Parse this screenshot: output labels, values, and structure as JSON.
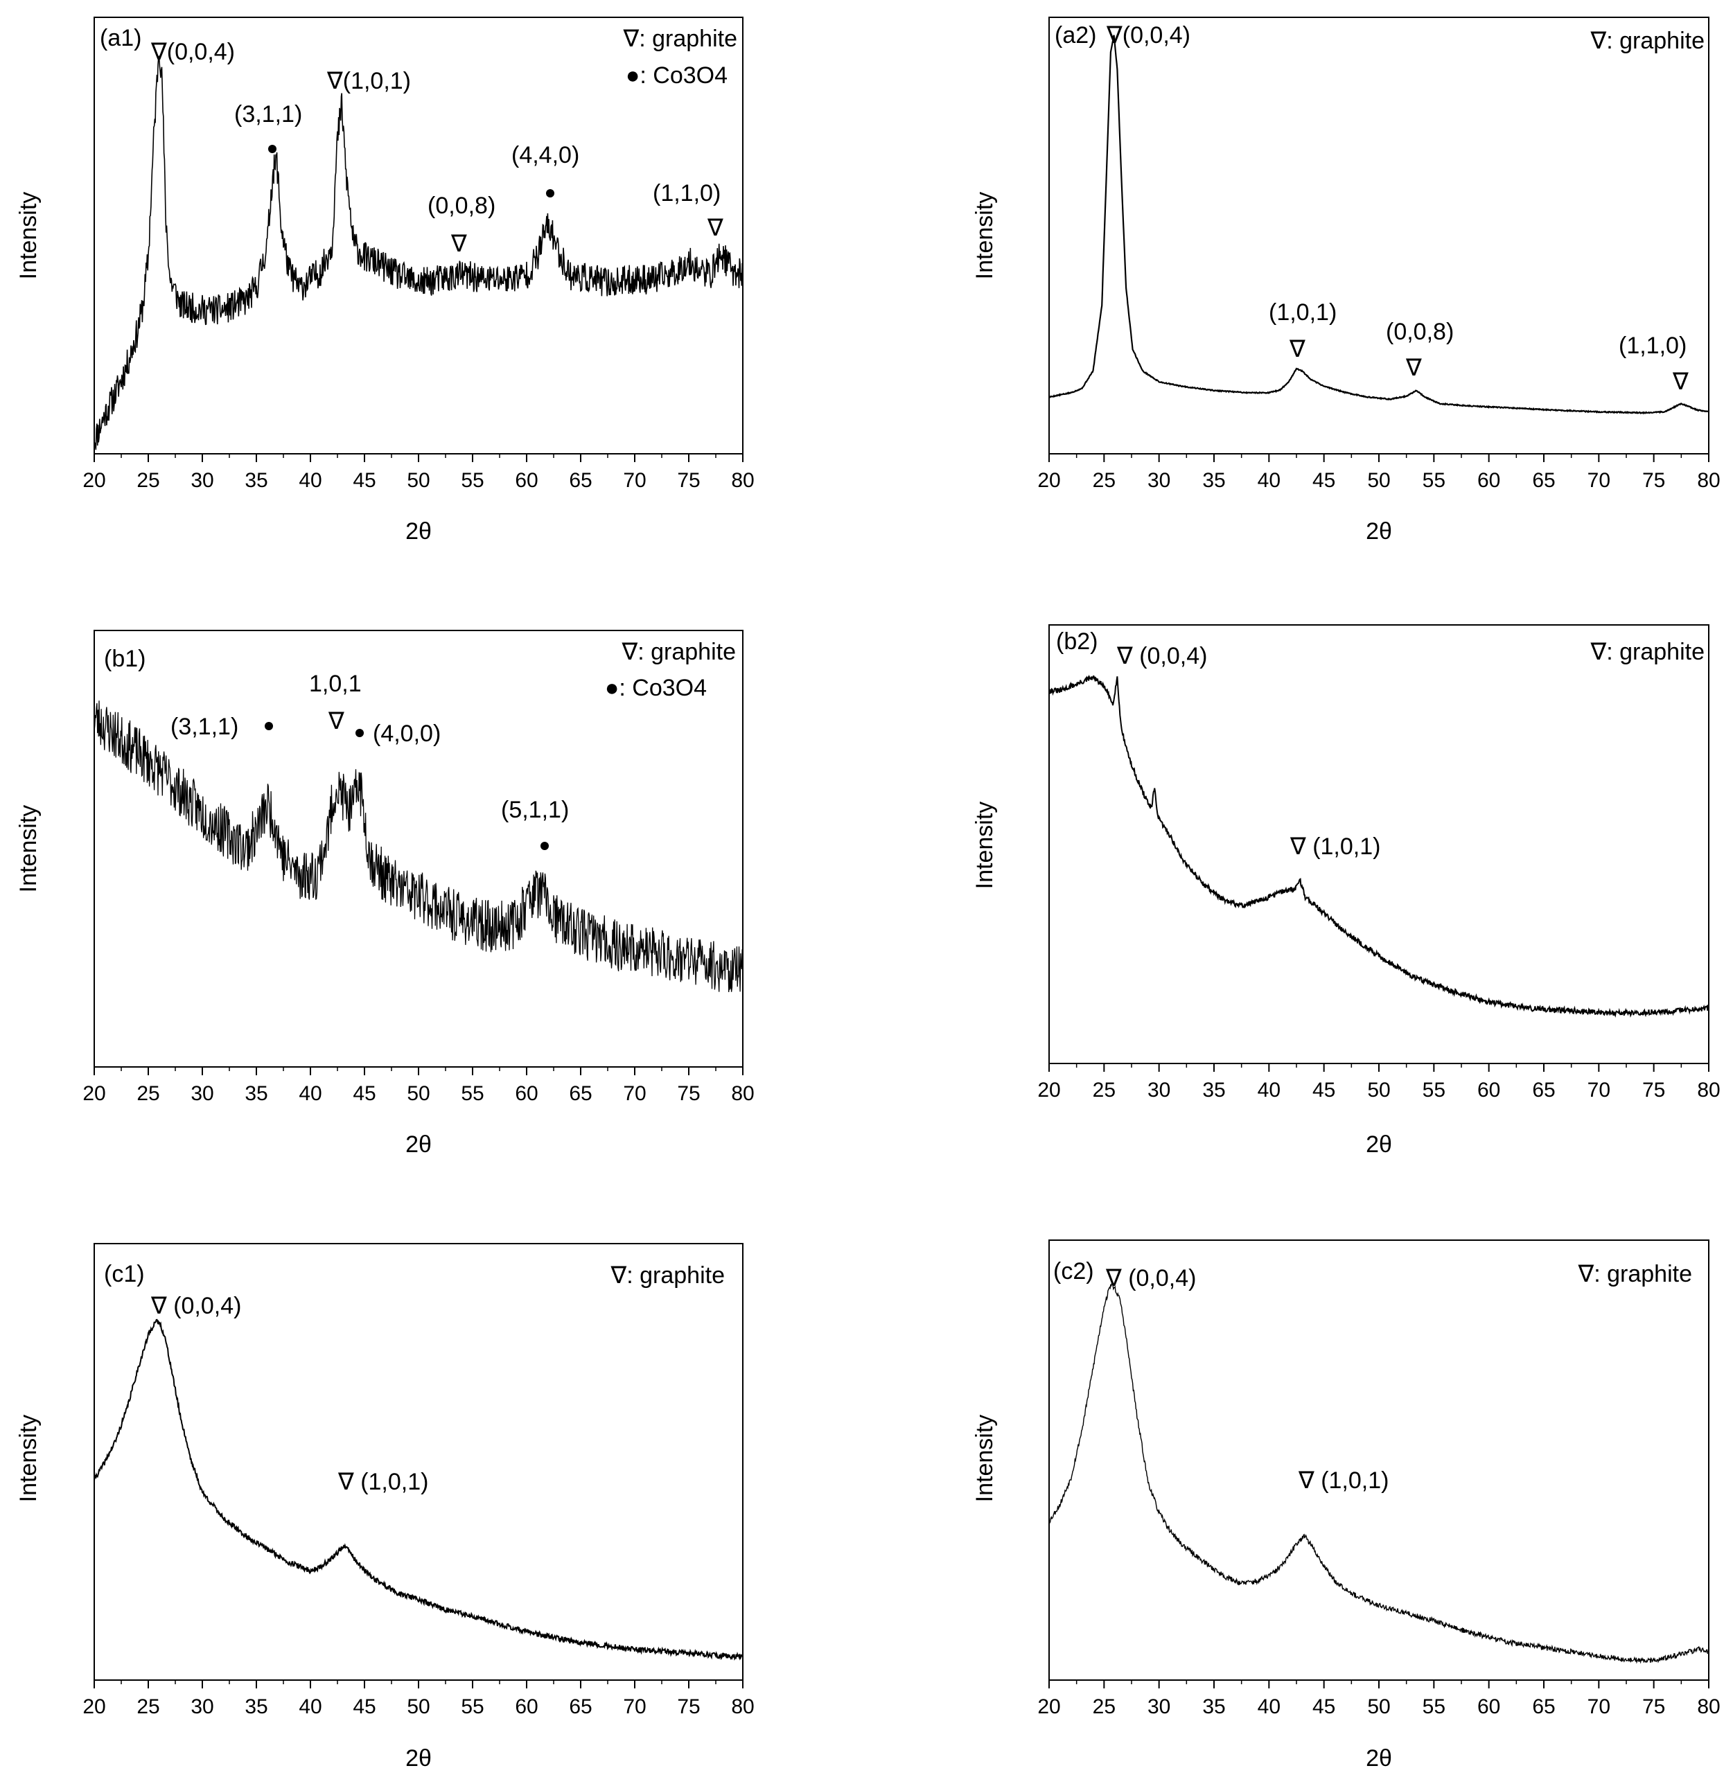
{
  "chart_data": [
    {
      "id": "a1",
      "type": "line",
      "panel_label": "(a1)",
      "xlabel": "2θ",
      "ylabel": "Intensity",
      "xlim": [
        20,
        80
      ],
      "ylim": [
        0,
        100
      ],
      "xticks": [
        20,
        25,
        30,
        35,
        40,
        45,
        50,
        55,
        60,
        65,
        70,
        75,
        80
      ],
      "legend": [
        "∇: graphite",
        "●: Co3O4"
      ],
      "noise": 3.5,
      "seed": 11,
      "series": [
        {
          "name": "a1",
          "x": [
            20,
            21,
            22,
            23,
            24,
            24.5,
            25,
            25.5,
            26,
            26.3,
            26.6,
            27,
            28,
            30,
            32,
            34,
            35,
            36,
            36.5,
            36.9,
            37.3,
            38,
            39,
            40,
            41,
            42,
            42.5,
            42.9,
            43.3,
            44,
            45,
            46,
            48,
            50,
            52,
            54,
            56,
            58,
            60,
            61,
            61.8,
            62.3,
            63,
            64,
            66,
            68,
            70,
            72,
            74,
            75,
            76,
            77,
            78,
            79,
            80
          ],
          "y": [
            3,
            9,
            14,
            20,
            28,
            34,
            45,
            72,
            94,
            84,
            55,
            40,
            34,
            33,
            33,
            35,
            38,
            48,
            64,
            67,
            52,
            42,
            38,
            40,
            42,
            48,
            72,
            80,
            64,
            48,
            45,
            44,
            41,
            39,
            40,
            41,
            40,
            40,
            41,
            45,
            52,
            51,
            46,
            41,
            40,
            39,
            40,
            40,
            42,
            44,
            42,
            41,
            46,
            42,
            41
          ]
        }
      ],
      "annotations": [
        {
          "text": "∇(0,0,4)",
          "x": 26.2
        },
        {
          "text": "(3,1,1)",
          "x": 36.9
        },
        {
          "text": "∇(1,0,1)",
          "x": 42.9
        },
        {
          "text": "(0,0,8)",
          "x": 54.0
        },
        {
          "text": "(4,4,0)",
          "x": 62.3
        },
        {
          "text": "(1,1,0)",
          "x": 78.0
        }
      ]
    },
    {
      "id": "a2",
      "type": "line",
      "panel_label": "(a2)",
      "xlabel": "2θ",
      "ylabel": "Intensity",
      "xlim": [
        20,
        80
      ],
      "ylim": [
        0,
        100
      ],
      "xticks": [
        20,
        25,
        30,
        35,
        40,
        45,
        50,
        55,
        60,
        65,
        70,
        75,
        80
      ],
      "legend": [
        "∇: graphite"
      ],
      "noise": 0.12,
      "seed": 5,
      "series": [
        {
          "name": "a2",
          "x": [
            20,
            22,
            23,
            24,
            24.8,
            25.3,
            25.6,
            25.9,
            26.2,
            26.6,
            27,
            27.6,
            28.5,
            30,
            32,
            35,
            38,
            40,
            41,
            41.8,
            42.5,
            43,
            43.8,
            45,
            47,
            49,
            51,
            52.5,
            53.4,
            54.2,
            55.5,
            58,
            62,
            66,
            70,
            74,
            76,
            77.5,
            79,
            80
          ],
          "y": [
            13,
            14,
            15,
            19,
            34,
            70,
            92,
            96,
            88,
            62,
            38,
            24,
            19,
            16.5,
            15.5,
            14.5,
            14,
            14,
            14.6,
            16.5,
            19.5,
            19,
            17,
            15.5,
            14,
            13,
            12.5,
            13.2,
            14.5,
            13,
            11.5,
            11,
            10.5,
            10,
            9.6,
            9.4,
            9.6,
            11.5,
            10,
            9.7
          ]
        }
      ],
      "annotations": [
        {
          "text": "∇(0,0,4)",
          "x": 25.9
        },
        {
          "text": "(1,0,1)",
          "x": 42.8
        },
        {
          "text": "(0,0,8)",
          "x": 53.4
        },
        {
          "text": "(1,1,0)",
          "x": 77.6
        }
      ]
    },
    {
      "id": "b1",
      "type": "line",
      "panel_label": "(b1)",
      "xlabel": "2θ",
      "ylabel": "Intensity",
      "xlim": [
        20,
        80
      ],
      "ylim": [
        0,
        100
      ],
      "xticks": [
        20,
        25,
        30,
        35,
        40,
        45,
        50,
        55,
        60,
        65,
        70,
        75,
        80
      ],
      "legend": [
        "∇: graphite",
        "●: Co3O4"
      ],
      "noise": 6,
      "seed": 23,
      "series": [
        {
          "name": "b1",
          "x": [
            20,
            22,
            24,
            26,
            28,
            30,
            32,
            34,
            35,
            36,
            36.6,
            37.5,
            39,
            40.5,
            41.5,
            42.3,
            43,
            43.8,
            44.5,
            45.5,
            47,
            49,
            51,
            53,
            55,
            57,
            59,
            60.5,
            61.5,
            62.5,
            64,
            66,
            68,
            70,
            72,
            74,
            76,
            78,
            80
          ],
          "y": [
            80,
            76,
            72,
            68,
            63,
            58,
            54,
            50,
            54,
            60,
            57,
            48,
            44,
            44,
            52,
            64,
            62,
            58,
            66,
            48,
            43,
            40,
            38,
            35,
            33,
            32,
            33,
            40,
            40,
            34,
            32,
            30,
            28,
            27,
            26,
            25,
            24,
            23,
            22
          ]
        }
      ],
      "annotations": [
        {
          "text": "(3,1,1)",
          "x": 36.3
        },
        {
          "text": "1,0,1",
          "x": 43.0
        },
        {
          "text": "(4,0,0)",
          "x": 44.5
        },
        {
          "text": "(5,1,1)",
          "x": 61.8
        }
      ]
    },
    {
      "id": "b2",
      "type": "line",
      "panel_label": "(b2)",
      "xlabel": "2θ",
      "ylabel": "Intensity",
      "xlim": [
        20,
        80
      ],
      "ylim": [
        0,
        100
      ],
      "xticks": [
        20,
        25,
        30,
        35,
        40,
        45,
        50,
        55,
        60,
        65,
        70,
        75,
        80
      ],
      "legend": [
        "∇: graphite"
      ],
      "noise": 0.6,
      "seed": 31,
      "series": [
        {
          "name": "b2",
          "x": [
            20,
            21,
            22,
            23,
            24,
            25,
            25.8,
            26.2,
            26.5,
            26.8,
            27.5,
            28.5,
            29.3,
            29.6,
            29.9,
            31,
            32,
            34,
            36,
            37.5,
            39,
            40.5,
            41.5,
            42.3,
            42.8,
            43.3,
            44,
            46,
            48,
            50,
            53,
            56,
            60,
            64,
            68,
            72,
            76,
            80
          ],
          "y": [
            85,
            85,
            86,
            87,
            88,
            86,
            82,
            88,
            78,
            74,
            68,
            62,
            58,
            63,
            56,
            52,
            47,
            41,
            37,
            36,
            37,
            38.5,
            39.5,
            39.5,
            42,
            38,
            36.5,
            32,
            28,
            24.5,
            20,
            17,
            14,
            12.5,
            12,
            11.5,
            11.8,
            12.5
          ]
        }
      ],
      "annotations": [
        {
          "text": "∇ (0,0,4)",
          "x": 26.4
        },
        {
          "text": "∇ (1,0,1)",
          "x": 42.8
        }
      ]
    },
    {
      "id": "c1",
      "type": "line",
      "panel_label": "(c1)",
      "xlabel": "2θ",
      "ylabel": "Intensity",
      "xlim": [
        20,
        80
      ],
      "ylim": [
        0,
        100
      ],
      "xticks": [
        20,
        25,
        30,
        35,
        40,
        45,
        50,
        55,
        60,
        65,
        70,
        75,
        80
      ],
      "legend": [
        "∇: graphite"
      ],
      "noise": 0.6,
      "seed": 41,
      "series": [
        {
          "name": "c1",
          "x": [
            20,
            21,
            22,
            23,
            24,
            25,
            25.6,
            26,
            26.5,
            27,
            28,
            29,
            30,
            32,
            34,
            36,
            38,
            40,
            41,
            42,
            43,
            43.5,
            44,
            45,
            46,
            48,
            50,
            52,
            55,
            58,
            61,
            64,
            67,
            70,
            73,
            76,
            78,
            80
          ],
          "y": [
            46,
            50,
            55,
            62,
            71,
            79,
            82,
            82,
            79,
            73,
            60,
            50,
            43,
            37,
            33,
            30,
            27,
            25,
            26,
            28,
            30.5,
            30,
            28,
            25,
            23,
            20,
            18.5,
            16.5,
            14.5,
            12.5,
            10.5,
            9,
            8,
            7,
            6.5,
            6,
            5.5,
            5.5
          ]
        }
      ],
      "annotations": [
        {
          "text": "∇ (0,0,4)",
          "x": 25.9
        },
        {
          "text": "∇ (1,0,1)",
          "x": 43.1
        }
      ]
    },
    {
      "id": "c2",
      "type": "line",
      "panel_label": "(c2)",
      "xlabel": "2θ",
      "ylabel": "Intensity",
      "xlim": [
        20,
        80
      ],
      "ylim": [
        0,
        100
      ],
      "xticks": [
        20,
        25,
        30,
        35,
        40,
        45,
        50,
        55,
        60,
        65,
        70,
        75,
        80
      ],
      "legend": [
        "∇: graphite"
      ],
      "noise": 0.6,
      "seed": 53,
      "series": [
        {
          "name": "c2",
          "x": [
            20,
            21,
            22,
            23,
            24,
            25,
            25.6,
            26,
            26.5,
            27,
            28,
            29,
            30,
            31,
            32,
            34,
            36,
            37.5,
            39,
            40.5,
            41.5,
            42.5,
            43.2,
            44,
            45,
            46,
            48,
            50,
            52,
            55,
            58,
            62,
            66,
            70,
            73,
            75,
            77,
            79,
            80
          ],
          "y": [
            36,
            40,
            46,
            57,
            71,
            85,
            90,
            89,
            86,
            78,
            60,
            45,
            38,
            34,
            31,
            27,
            23.5,
            22,
            22.5,
            24.5,
            27,
            31,
            33,
            30,
            26,
            22.5,
            19,
            17,
            15.5,
            13.5,
            11,
            8.5,
            7,
            5.5,
            4.5,
            4.5,
            5.5,
            7,
            6.5
          ]
        }
      ],
      "annotations": [
        {
          "text": "∇ (0,0,4)",
          "x": 26.0
        },
        {
          "text": "∇ (1,0,1)",
          "x": 43.2
        }
      ]
    }
  ]
}
